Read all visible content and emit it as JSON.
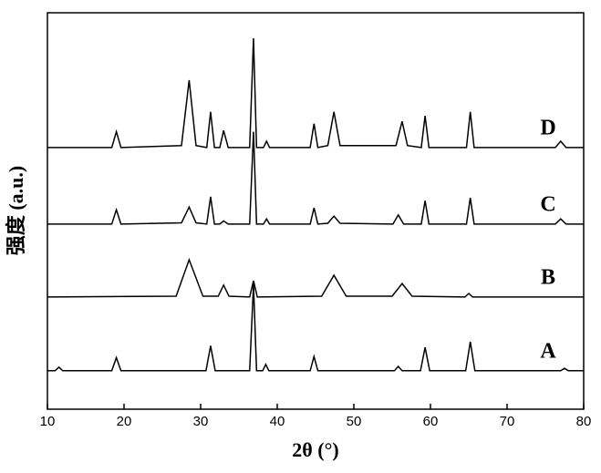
{
  "chart_data": {
    "type": "line",
    "x_label": "2θ (°)",
    "y_label": "强度 (a.u.)",
    "xlim": [
      10,
      80
    ],
    "xticks": [
      10,
      20,
      30,
      40,
      50,
      60,
      70,
      80
    ],
    "ylim": [
      0,
      100
    ],
    "series": [
      {
        "name": "D",
        "color": "#000000",
        "x": [
          10,
          18.4,
          19,
          19.6,
          27.5,
          28.5,
          29.4,
          30.8,
          31.3,
          31.8,
          32.5,
          33,
          33.6,
          36.4,
          36.9,
          37.3,
          38.2,
          38.6,
          39,
          44.3,
          44.8,
          45.3,
          46.6,
          47.4,
          48.2,
          55.5,
          56.3,
          57,
          58.8,
          59.3,
          59.8,
          64.7,
          65.2,
          65.7,
          76.3,
          77,
          77.7,
          80
        ],
        "values": [
          66,
          66,
          70,
          66,
          66.5,
          83,
          66.5,
          66,
          75,
          66,
          66,
          70.3,
          66,
          66,
          93.6,
          66,
          66,
          67.6,
          66,
          66,
          72,
          66,
          66.5,
          75,
          66.5,
          66.5,
          72.6,
          66.5,
          66,
          74,
          66,
          66,
          75,
          66,
          66,
          67.6,
          66,
          66
        ]
      },
      {
        "name": "C",
        "color": "#000000",
        "x": [
          10,
          18.4,
          19,
          19.6,
          27.5,
          28.5,
          29.4,
          30.8,
          31.3,
          31.8,
          32.5,
          33,
          33.6,
          36.4,
          36.9,
          37.3,
          38.2,
          38.6,
          39,
          44.3,
          44.8,
          45.3,
          46.6,
          47.4,
          48.2,
          55.1,
          55.8,
          56.5,
          58.8,
          59.3,
          59.8,
          64.7,
          65.2,
          65.7,
          76.3,
          77,
          77.7,
          80
        ],
        "values": [
          46.7,
          46.7,
          50.3,
          46.7,
          47,
          51,
          47,
          46.7,
          53.6,
          46.7,
          46.7,
          47.5,
          46.7,
          46.7,
          70,
          46.7,
          46.7,
          48,
          46.7,
          46.7,
          50.8,
          46.7,
          46.9,
          48.7,
          46.9,
          46.7,
          49,
          46.7,
          46.7,
          52.6,
          46.7,
          46.7,
          53.3,
          46.7,
          46.7,
          48,
          46.7,
          46.7
        ]
      },
      {
        "name": "B",
        "color": "#000000",
        "x": [
          10,
          26.8,
          28.5,
          30.3,
          32.3,
          33,
          33.7,
          36.4,
          36.9,
          37.4,
          45.8,
          47.4,
          49,
          55,
          56.3,
          57.6,
          64.5,
          65,
          65.5,
          80
        ],
        "values": [
          28.3,
          28.5,
          37.7,
          28.5,
          28.5,
          31.3,
          28.5,
          28.3,
          32.4,
          28.3,
          28.5,
          33.8,
          28.5,
          28.5,
          31.7,
          28.5,
          28.3,
          29.2,
          28.3,
          28.3
        ]
      },
      {
        "name": "A",
        "color": "#000000",
        "x": [
          10,
          11,
          11.5,
          12,
          18.4,
          19,
          19.6,
          30.7,
          31.3,
          31.9,
          36.4,
          36.9,
          37.3,
          38.1,
          38.5,
          38.9,
          44.3,
          44.8,
          45.3,
          55.3,
          55.8,
          56.3,
          58.7,
          59.3,
          59.9,
          64.6,
          65.2,
          65.8,
          77,
          77.5,
          78,
          80
        ],
        "values": [
          9.7,
          9.7,
          10.6,
          9.7,
          9.7,
          13,
          9.7,
          9.7,
          16,
          9.7,
          9.7,
          31.5,
          9.7,
          9.7,
          11.3,
          9.7,
          9.7,
          13.3,
          9.7,
          9.7,
          10.8,
          9.7,
          9.7,
          15.6,
          9.7,
          9.7,
          17,
          9.7,
          9.7,
          10.3,
          9.7,
          9.7
        ]
      }
    ]
  }
}
